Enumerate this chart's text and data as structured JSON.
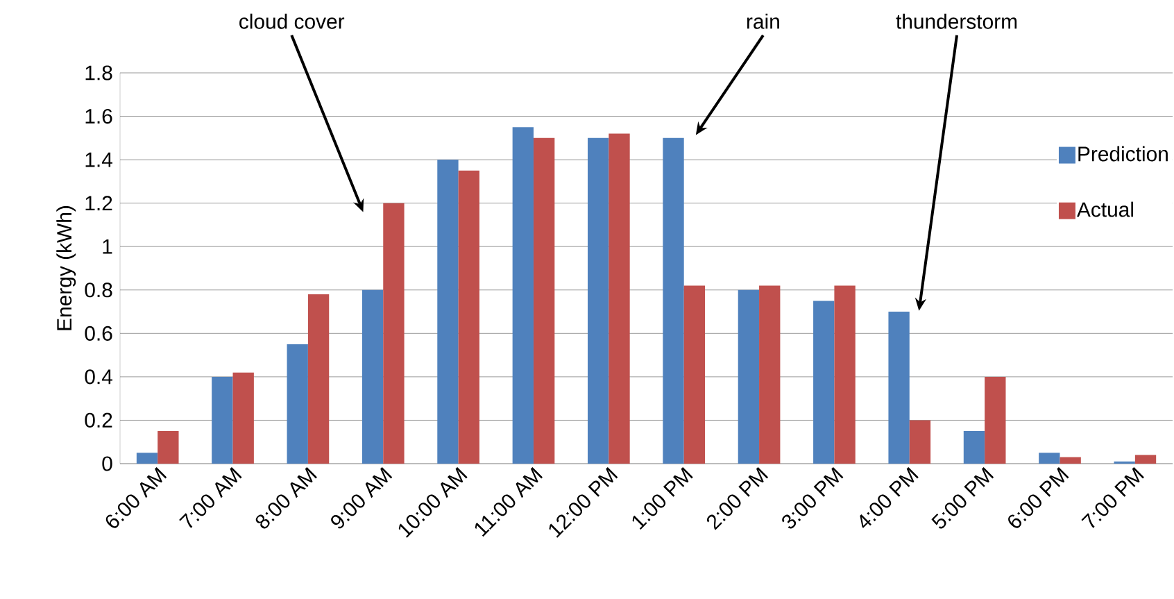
{
  "chart_data": {
    "type": "bar",
    "ylabel": "Energy (kWh)",
    "categories": [
      "6:00 AM",
      "7:00 AM",
      "8:00 AM",
      "9:00 AM",
      "10:00 AM",
      "11:00 AM",
      "12:00 PM",
      "1:00 PM",
      "2:00 PM",
      "3:00 PM",
      "4:00 PM",
      "5:00 PM",
      "6:00 PM",
      "7:00 PM"
    ],
    "series": [
      {
        "name": "Prediction",
        "color": "#4f81bd",
        "values": [
          0.05,
          0.4,
          0.55,
          0.8,
          1.4,
          1.55,
          1.5,
          1.5,
          0.8,
          0.75,
          0.7,
          0.15,
          0.05,
          0.01
        ]
      },
      {
        "name": "Actual",
        "color": "#c0504d",
        "values": [
          0.15,
          0.42,
          0.78,
          1.2,
          1.35,
          1.5,
          1.52,
          0.82,
          0.82,
          0.82,
          0.2,
          0.4,
          0.03,
          0.04
        ]
      }
    ],
    "ylim": [
      0,
      1.8
    ],
    "yticks": [
      0,
      0.2,
      0.4,
      0.6,
      0.8,
      1,
      1.2,
      1.4,
      1.6,
      1.8
    ],
    "grid": "y",
    "legend": "top right",
    "annotations": [
      "cloud cover",
      "rain",
      "thunderstorm"
    ]
  }
}
